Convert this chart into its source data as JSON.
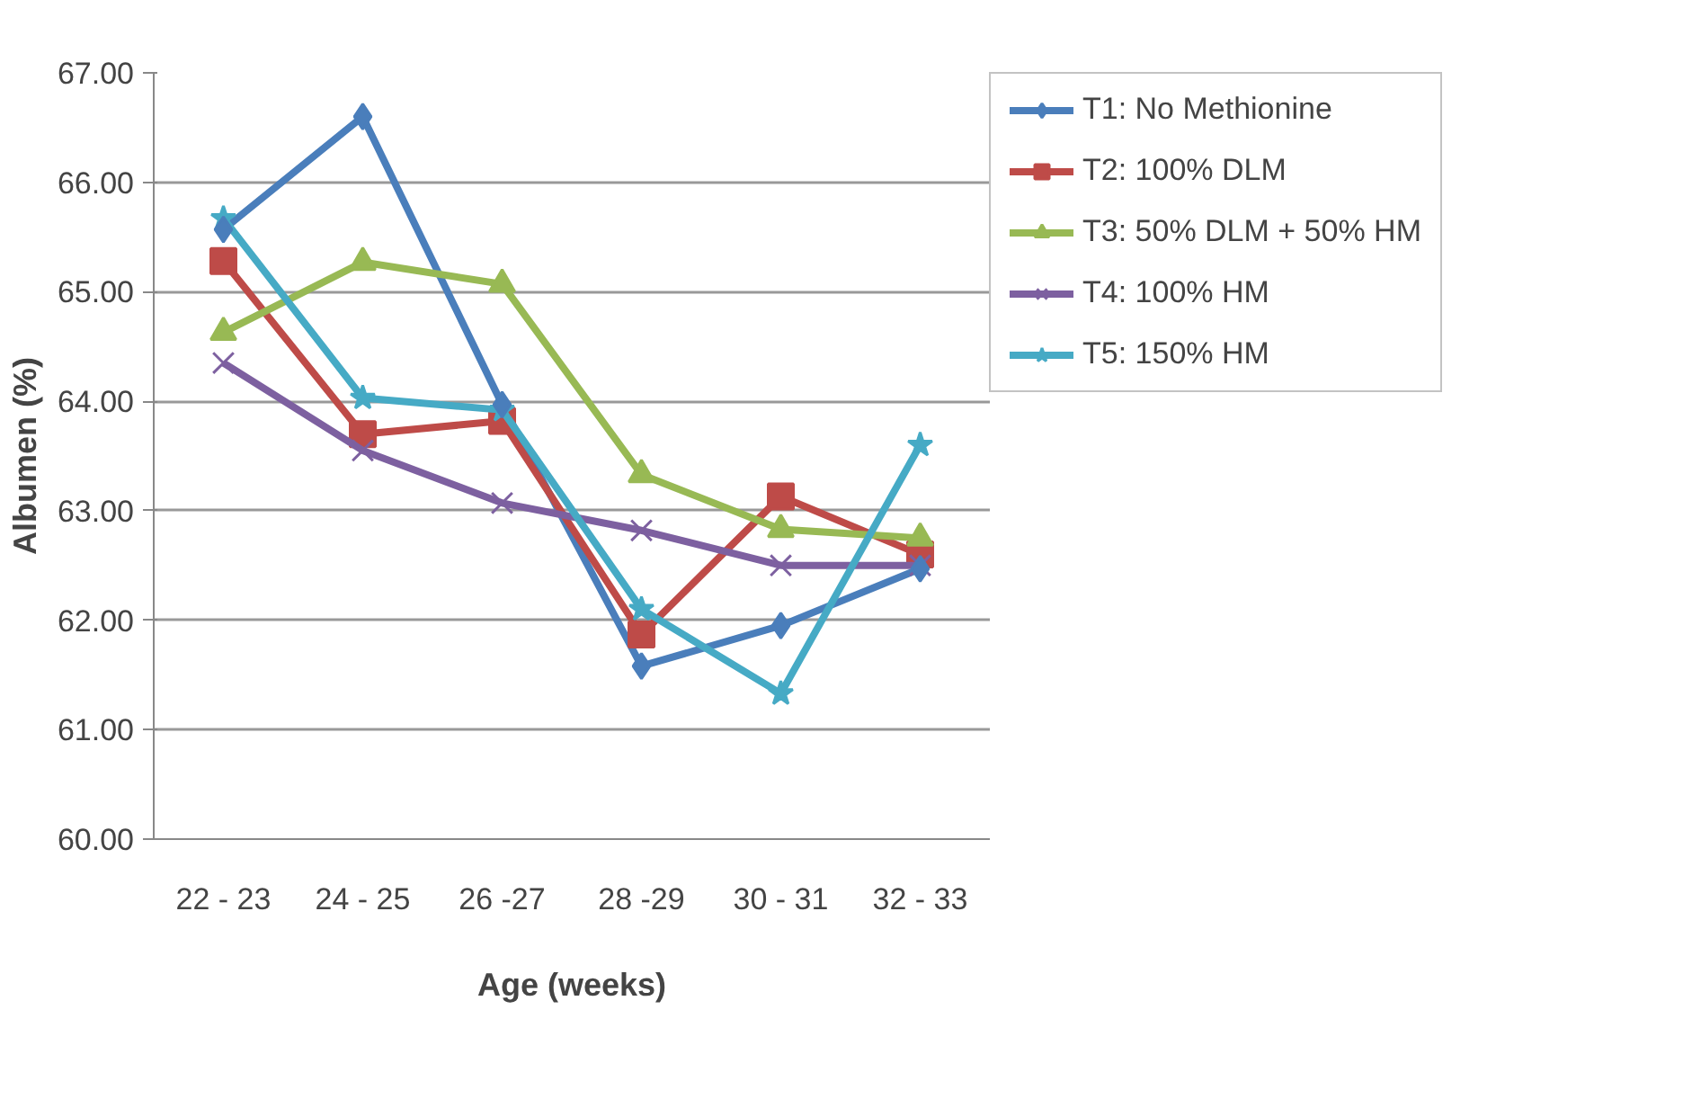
{
  "chart_data": {
    "type": "line",
    "xlabel": "Age (weeks)",
    "ylabel": "Albumen (%)",
    "categories": [
      "22 - 23",
      "24 - 25",
      "26 -27",
      "28 -29",
      "30 - 31",
      "32 - 33"
    ],
    "ylim": [
      60,
      67
    ],
    "yticks": [
      {
        "value": 60,
        "label": "60.00"
      },
      {
        "value": 61,
        "label": "61.00"
      },
      {
        "value": 62,
        "label": "62.00"
      },
      {
        "value": 63,
        "label": "63.00"
      },
      {
        "value": 64,
        "label": "64.00"
      },
      {
        "value": 65,
        "label": "65.00"
      },
      {
        "value": 66,
        "label": "66.00"
      },
      {
        "value": 67,
        "label": "67.00"
      }
    ],
    "grid": "y",
    "legend": "right",
    "line_style": "solid",
    "series": [
      {
        "name": "T1: No Methionine",
        "color": "#4a7ebb",
        "marker": "diamond",
        "values": [
          65.57,
          66.6,
          63.97,
          61.58,
          61.95,
          62.47
        ]
      },
      {
        "name": "T2: 100% DLM",
        "color": "#be4b48",
        "marker": "square",
        "values": [
          65.28,
          63.7,
          63.82,
          61.87,
          63.13,
          62.6
        ]
      },
      {
        "name": "T3: 50% DLM + 50% HM",
        "color": "#98b954",
        "marker": "triangle",
        "values": [
          64.63,
          65.27,
          65.07,
          63.33,
          62.83,
          62.75
        ]
      },
      {
        "name": "T4: 100% HM",
        "color": "#7d60a0",
        "marker": "cross",
        "values": [
          64.35,
          63.55,
          63.07,
          62.82,
          62.5,
          62.5
        ]
      },
      {
        "name": "T5: 150% HM",
        "color": "#46aac5",
        "marker": "star",
        "values": [
          65.67,
          64.03,
          63.92,
          62.1,
          61.33,
          63.6
        ]
      }
    ]
  }
}
